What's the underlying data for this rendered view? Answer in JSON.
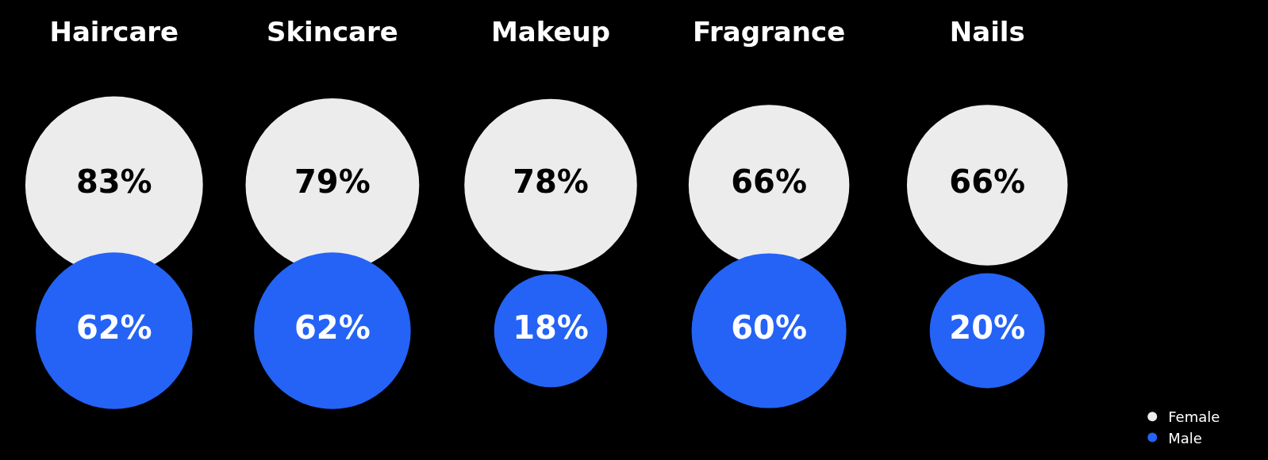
{
  "chart_data": {
    "type": "other",
    "categories": [
      "Haircare",
      "Skincare",
      "Makeup",
      "Fragrance",
      "Nails"
    ],
    "series": [
      {
        "name": "Female",
        "color": "#ececec",
        "values": [
          83,
          79,
          78,
          66,
          66
        ],
        "value_labels": [
          "83%",
          "79%",
          "78%",
          "66%",
          "66%"
        ]
      },
      {
        "name": "Male",
        "color": "#2463f6",
        "values": [
          62,
          62,
          18,
          60,
          20
        ],
        "value_labels": [
          "62%",
          "62%",
          "18%",
          "60%",
          "20%"
        ]
      }
    ],
    "legend": "bottom right"
  }
}
